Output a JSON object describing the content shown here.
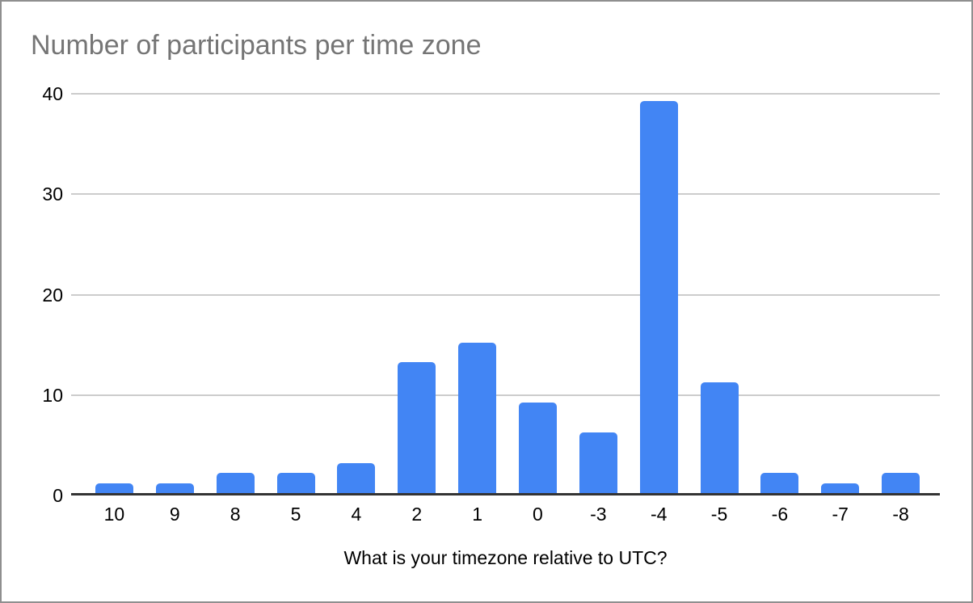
{
  "chart_data": {
    "type": "bar",
    "title": "Number of participants per time zone",
    "xlabel": "What is your timezone relative to UTC?",
    "ylabel": "",
    "categories": [
      "10",
      "9",
      "8",
      "5",
      "4",
      "2",
      "1",
      "0",
      "-3",
      "-4",
      "-5",
      "-6",
      "-7",
      "-8"
    ],
    "values": [
      1,
      1,
      2,
      2,
      3,
      13,
      15,
      9,
      6,
      39,
      11,
      2,
      1,
      2
    ],
    "y_ticks": [
      0,
      10,
      20,
      30,
      40
    ],
    "ylim": [
      0,
      40
    ],
    "grid": true,
    "legend": "none",
    "colors": {
      "bar": "#4285F4",
      "title_text": "#757575",
      "gridline": "#cccccc",
      "axis_line": "#333333",
      "tick_text": "#000000",
      "frame_border": "#8f8f8f",
      "background": "#ffffff"
    }
  }
}
